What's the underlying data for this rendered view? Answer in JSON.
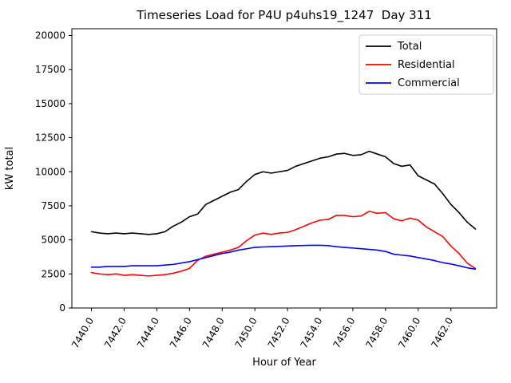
{
  "chart_data": {
    "type": "line",
    "title": "Timeseries Load for P4U p4uhs19_1247  Day 311",
    "xlabel": "Hour of Year",
    "ylabel": "kW total",
    "xlim": [
      7438.8,
      7464.8
    ],
    "ylim": [
      0,
      20500
    ],
    "y_ticks": [
      0,
      2500,
      5000,
      7500,
      10000,
      12500,
      15000,
      17500,
      20000
    ],
    "x_tick_values": [
      7440,
      7442,
      7444,
      7446,
      7448,
      7450,
      7452,
      7454,
      7456,
      7458,
      7460,
      7462
    ],
    "x_tick_labels": [
      "7440.0",
      "7442.0",
      "7444.0",
      "7446.0",
      "7448.0",
      "7450.0",
      "7452.0",
      "7454.0",
      "7456.0",
      "7458.0",
      "7460.0",
      "7462.0"
    ],
    "legend_position": "upper right",
    "grid": false,
    "x": [
      7440.0,
      7440.5,
      7441.0,
      7441.5,
      7442.0,
      7442.5,
      7443.0,
      7443.5,
      7444.0,
      7444.5,
      7445.0,
      7445.5,
      7446.0,
      7446.5,
      7447.0,
      7447.5,
      7448.0,
      7448.5,
      7449.0,
      7449.5,
      7450.0,
      7450.5,
      7451.0,
      7451.5,
      7452.0,
      7452.5,
      7453.0,
      7453.5,
      7454.0,
      7454.5,
      7455.0,
      7455.5,
      7456.0,
      7456.5,
      7457.0,
      7457.5,
      7458.0,
      7458.5,
      7459.0,
      7459.5,
      7460.0,
      7460.5,
      7461.0,
      7461.5,
      7462.0,
      7462.5,
      7463.0,
      7463.5
    ],
    "series": [
      {
        "name": "Total",
        "color": "#000000",
        "values": [
          5600,
          5500,
          5450,
          5500,
          5450,
          5500,
          5450,
          5400,
          5450,
          5600,
          6000,
          6300,
          6700,
          6900,
          7600,
          7900,
          8200,
          8500,
          8700,
          9300,
          9800,
          10000,
          9900,
          10000,
          10100,
          10400,
          10600,
          10800,
          11000,
          11100,
          11300,
          11350,
          11200,
          11250,
          11500,
          11300,
          11100,
          10600,
          10400,
          10500,
          9700,
          9400,
          9100,
          8400,
          7600,
          7000,
          6300,
          5800
        ]
      },
      {
        "name": "Residential",
        "color": "#ff0000",
        "values": [
          2600,
          2500,
          2450,
          2500,
          2400,
          2450,
          2400,
          2350,
          2400,
          2450,
          2550,
          2700,
          2900,
          3500,
          3800,
          3950,
          4100,
          4250,
          4450,
          4950,
          5350,
          5500,
          5400,
          5500,
          5550,
          5750,
          6000,
          6250,
          6450,
          6500,
          6800,
          6800,
          6700,
          6750,
          7100,
          6950,
          7000,
          6550,
          6400,
          6600,
          6450,
          5950,
          5600,
          5250,
          4550,
          4000,
          3300,
          2900
        ]
      },
      {
        "name": "Commercial",
        "color": "#0000ff",
        "values": [
          3000,
          3000,
          3050,
          3050,
          3050,
          3100,
          3100,
          3100,
          3100,
          3150,
          3200,
          3300,
          3400,
          3550,
          3700,
          3850,
          4000,
          4100,
          4250,
          4350,
          4450,
          4480,
          4500,
          4520,
          4550,
          4570,
          4590,
          4600,
          4600,
          4580,
          4500,
          4450,
          4400,
          4350,
          4300,
          4250,
          4150,
          3950,
          3880,
          3820,
          3700,
          3600,
          3480,
          3330,
          3230,
          3100,
          2950,
          2850
        ]
      }
    ]
  }
}
